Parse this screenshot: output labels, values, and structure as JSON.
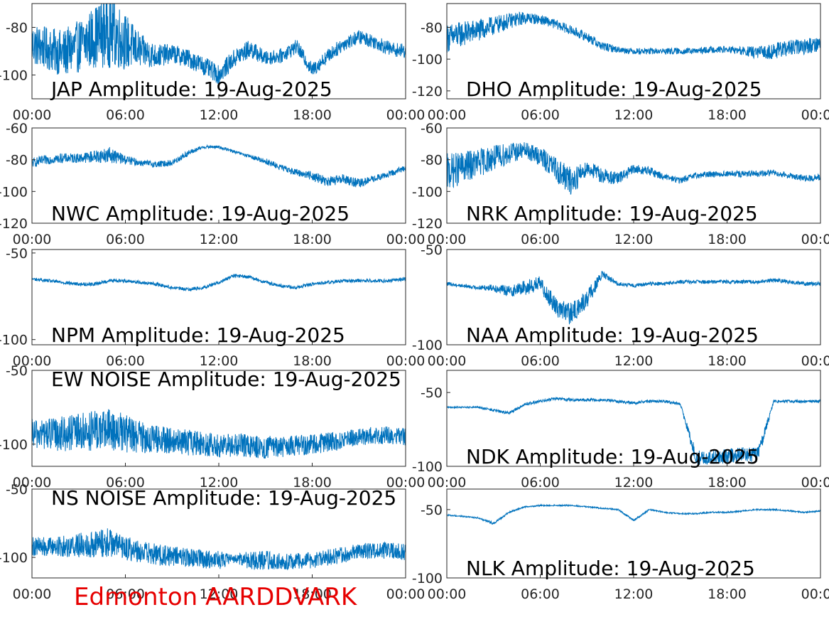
{
  "figure": {
    "footer_label": "Edmonton AARDDVARK",
    "footer_color": "#ff0000",
    "series_color": "#0072bd",
    "x_ticks": [
      "00:00",
      "06:00",
      "12:00",
      "18:00",
      "00:00"
    ],
    "xlim": [
      0,
      24
    ]
  },
  "chart_data": [
    {
      "type": "line",
      "title": "JAP Amplitude: 19-Aug-2025",
      "x_tick_labels": [
        "00:00",
        "06:00",
        "12:00",
        "18:00",
        "00:00"
      ],
      "y_tick_labels": [
        "-80",
        "-100"
      ],
      "yticks": [
        -80,
        -100
      ],
      "ylim": [
        -110,
        -70
      ],
      "xlim": [
        0,
        24
      ],
      "series": [
        {
          "x": [
            0,
            1,
            2,
            3,
            4,
            5,
            6,
            7,
            8,
            9,
            10,
            11,
            12,
            13,
            14,
            15,
            16,
            17,
            18,
            19,
            20,
            21,
            22,
            23,
            24
          ],
          "y": [
            -87,
            -89,
            -91,
            -88,
            -84,
            -81,
            -86,
            -90,
            -92,
            -91,
            -93,
            -96,
            -100,
            -93,
            -89,
            -93,
            -92,
            -88,
            -98,
            -92,
            -87,
            -84,
            -86,
            -89,
            -90
          ],
          "spread": [
            9,
            9,
            10,
            11,
            13,
            16,
            12,
            7,
            5,
            4,
            4,
            4,
            4,
            4,
            4,
            3,
            3,
            3,
            3,
            3,
            3,
            3,
            3,
            3,
            3
          ]
        }
      ]
    },
    {
      "type": "line",
      "title": "DHO Amplitude: 19-Aug-2025",
      "x_tick_labels": [
        "00:00",
        "06:00",
        "12:00",
        "18:00",
        "00:00"
      ],
      "y_tick_labels": [
        "-80",
        "-100",
        "-120"
      ],
      "yticks": [
        -80,
        -100,
        -120
      ],
      "ylim": [
        -125,
        -65
      ],
      "xlim": [
        0,
        24
      ],
      "series": [
        {
          "x": [
            0,
            1,
            2,
            3,
            4,
            5,
            6,
            7,
            8,
            9,
            10,
            11,
            12,
            13,
            14,
            15,
            16,
            17,
            18,
            19,
            20,
            21,
            22,
            23,
            24
          ],
          "y": [
            -87,
            -84,
            -82,
            -79,
            -76,
            -74,
            -75,
            -78,
            -82,
            -86,
            -92,
            -94,
            -95,
            -95,
            -95,
            -95,
            -95,
            -94,
            -94,
            -95,
            -96,
            -95,
            -93,
            -92,
            -90
          ],
          "spread": [
            9,
            8,
            7,
            6,
            5,
            4,
            3,
            3,
            3,
            3,
            3,
            2,
            2,
            2,
            2,
            2,
            2,
            2,
            2,
            3,
            4,
            5,
            5,
            5,
            5
          ]
        }
      ]
    },
    {
      "type": "line",
      "title": "NWC Amplitude: 19-Aug-2025",
      "x_tick_labels": [
        "00:00",
        "06:00",
        "12:00",
        "18:00",
        "00:00"
      ],
      "y_tick_labels": [
        "-60",
        "-80",
        "-100",
        "-120"
      ],
      "yticks": [
        -60,
        -80,
        -100,
        -120
      ],
      "ylim": [
        -120,
        -60
      ],
      "xlim": [
        0,
        24
      ],
      "series": [
        {
          "x": [
            0,
            1,
            2,
            3,
            4,
            5,
            6,
            7,
            8,
            9,
            10,
            11,
            12,
            13,
            14,
            15,
            16,
            17,
            18,
            19,
            20,
            21,
            22,
            23,
            24
          ],
          "y": [
            -82,
            -80,
            -79,
            -79,
            -78,
            -77,
            -80,
            -82,
            -83,
            -82,
            -76,
            -72,
            -72,
            -75,
            -78,
            -81,
            -85,
            -88,
            -90,
            -94,
            -92,
            -95,
            -92,
            -89,
            -85
          ],
          "spread": [
            3,
            3,
            3,
            3,
            4,
            5,
            3,
            2,
            2,
            2,
            2,
            1,
            1,
            1,
            1,
            2,
            2,
            2,
            3,
            3,
            3,
            3,
            2,
            2,
            2
          ]
        }
      ]
    },
    {
      "type": "line",
      "title": "NRK Amplitude: 19-Aug-2025",
      "x_tick_labels": [
        "00:00",
        "06:00",
        "12:00",
        "18:00",
        "00:00"
      ],
      "y_tick_labels": [
        "-60",
        "-80",
        "-100",
        "-120"
      ],
      "yticks": [
        -60,
        -80,
        -100,
        -120
      ],
      "ylim": [
        -120,
        -60
      ],
      "xlim": [
        0,
        24
      ],
      "series": [
        {
          "x": [
            0,
            1,
            2,
            3,
            4,
            5,
            6,
            7,
            8,
            9,
            10,
            11,
            12,
            13,
            14,
            15,
            16,
            17,
            18,
            19,
            20,
            21,
            22,
            23,
            24
          ],
          "y": [
            -88,
            -85,
            -82,
            -79,
            -76,
            -74,
            -78,
            -86,
            -94,
            -85,
            -90,
            -92,
            -86,
            -87,
            -91,
            -93,
            -90,
            -89,
            -89,
            -89,
            -89,
            -88,
            -90,
            -92,
            -91
          ],
          "spread": [
            12,
            10,
            9,
            8,
            7,
            5,
            6,
            8,
            9,
            5,
            5,
            4,
            3,
            3,
            2,
            2,
            2,
            2,
            2,
            2,
            2,
            2,
            2,
            2,
            2
          ]
        }
      ]
    },
    {
      "type": "line",
      "title": "NPM Amplitude: 19-Aug-2025",
      "x_tick_labels": [
        "00:00",
        "06:00",
        "12:00",
        "18:00",
        "00:00"
      ],
      "y_tick_labels": [
        "-50",
        "-100"
      ],
      "yticks": [
        -50,
        -100
      ],
      "ylim": [
        -103,
        -48
      ],
      "xlim": [
        0,
        24
      ],
      "series": [
        {
          "x": [
            0,
            1,
            2,
            3,
            4,
            5,
            6,
            7,
            8,
            9,
            10,
            11,
            12,
            13,
            14,
            15,
            16,
            17,
            18,
            19,
            20,
            21,
            22,
            23,
            24
          ],
          "y": [
            -65,
            -66,
            -67,
            -68,
            -68,
            -66,
            -66,
            -67,
            -68,
            -70,
            -71,
            -70,
            -67,
            -63,
            -64,
            -67,
            -69,
            -70,
            -68,
            -67,
            -66,
            -66,
            -66,
            -66,
            -65
          ],
          "spread": [
            1,
            1,
            1,
            1,
            1,
            1,
            1,
            1,
            1,
            1,
            1,
            1,
            1,
            1,
            1,
            1,
            1,
            1,
            1,
            1,
            1,
            1,
            1,
            1,
            1
          ]
        }
      ]
    },
    {
      "type": "line",
      "title": "NAA Amplitude: 19-Aug-2025",
      "x_tick_labels": [
        "00:00",
        "06:00",
        "12:00",
        "18:00",
        "00:00"
      ],
      "y_tick_labels": [
        "-50",
        "-100"
      ],
      "yticks": [
        -50,
        -100
      ],
      "ylim": [
        -100,
        -50
      ],
      "xlim": [
        0,
        24
      ],
      "series": [
        {
          "x": [
            0,
            1,
            2,
            3,
            4,
            5,
            6,
            7,
            8,
            9,
            10,
            11,
            12,
            13,
            14,
            15,
            16,
            17,
            18,
            19,
            20,
            21,
            22,
            23,
            24
          ],
          "y": [
            -68,
            -69,
            -70,
            -70,
            -72,
            -70,
            -68,
            -80,
            -84,
            -76,
            -63,
            -68,
            -69,
            -68,
            -68,
            -67,
            -67,
            -67,
            -67,
            -67,
            -67,
            -66,
            -67,
            -68,
            -68
          ],
          "spread": [
            1,
            1,
            1,
            2,
            3,
            4,
            4,
            5,
            6,
            5,
            2,
            1,
            1,
            1,
            1,
            1,
            1,
            1,
            1,
            1,
            1,
            1,
            1,
            1,
            1
          ]
        }
      ]
    },
    {
      "type": "line",
      "title": "EW NOISE Amplitude: 19-Aug-2025",
      "x_tick_labels": [
        "00:00",
        "06:00",
        "12:00",
        "18:00",
        "00:00"
      ],
      "y_tick_labels": [
        "-50",
        "-100"
      ],
      "yticks": [
        -50,
        -100
      ],
      "ylim": [
        -115,
        -50
      ],
      "xlim": [
        0,
        24
      ],
      "series": [
        {
          "x": [
            0,
            1,
            2,
            3,
            4,
            5,
            6,
            7,
            8,
            9,
            10,
            11,
            12,
            13,
            14,
            15,
            16,
            17,
            18,
            19,
            20,
            21,
            22,
            23,
            24
          ],
          "y": [
            -93,
            -93,
            -93,
            -92,
            -91,
            -90,
            -93,
            -95,
            -97,
            -98,
            -99,
            -100,
            -101,
            -101,
            -101,
            -102,
            -102,
            -101,
            -100,
            -99,
            -97,
            -95,
            -94,
            -94,
            -95
          ],
          "spread": [
            10,
            11,
            12,
            13,
            14,
            15,
            13,
            11,
            10,
            9,
            9,
            8,
            8,
            8,
            8,
            8,
            7,
            7,
            7,
            7,
            6,
            6,
            6,
            6,
            6
          ]
        }
      ]
    },
    {
      "type": "line",
      "title": "NDK Amplitude: 19-Aug-2025",
      "x_tick_labels": [
        "00:00",
        "06:00",
        "12:00",
        "18:00",
        "00:00"
      ],
      "y_tick_labels": [
        "-50",
        "-100"
      ],
      "yticks": [
        -50,
        -100
      ],
      "ylim": [
        -100,
        -35
      ],
      "xlim": [
        0,
        24
      ],
      "series": [
        {
          "x": [
            0,
            1,
            2,
            3,
            4,
            5,
            6,
            7,
            8,
            9,
            10,
            11,
            12,
            13,
            14,
            15,
            16,
            17,
            18,
            19,
            20,
            21,
            22,
            23,
            24
          ],
          "y": [
            -60,
            -60,
            -60,
            -62,
            -64,
            -58,
            -56,
            -54,
            -55,
            -55,
            -55,
            -56,
            -57,
            -56,
            -56,
            -58,
            -94,
            -94,
            -93,
            -92,
            -92,
            -56,
            -56,
            -56,
            -56
          ],
          "spread": [
            0.5,
            0.5,
            0.5,
            1,
            1,
            1,
            1,
            1,
            1,
            1,
            1,
            1,
            1,
            1,
            1,
            1,
            5,
            5,
            5,
            5,
            5,
            1,
            1,
            1,
            1
          ]
        }
      ]
    },
    {
      "type": "line",
      "title": "NS NOISE Amplitude: 19-Aug-2025",
      "x_tick_labels": [
        "00:00",
        "06:00",
        "12:00",
        "18:00",
        "00:00"
      ],
      "y_tick_labels": [
        "-50",
        "-100"
      ],
      "yticks": [
        -50,
        -100
      ],
      "ylim": [
        -115,
        -50
      ],
      "xlim": [
        0,
        24
      ],
      "series": [
        {
          "x": [
            0,
            1,
            2,
            3,
            4,
            5,
            6,
            7,
            8,
            9,
            10,
            11,
            12,
            13,
            14,
            15,
            16,
            17,
            18,
            19,
            20,
            21,
            22,
            23,
            24
          ],
          "y": [
            -92,
            -92,
            -92,
            -91,
            -90,
            -89,
            -93,
            -96,
            -98,
            -99,
            -100,
            -101,
            -102,
            -101,
            -102,
            -102,
            -103,
            -103,
            -102,
            -100,
            -98,
            -96,
            -95,
            -95,
            -96
          ],
          "spread": [
            7,
            7,
            8,
            9,
            10,
            11,
            9,
            8,
            8,
            7,
            7,
            7,
            7,
            3,
            7,
            7,
            6,
            6,
            6,
            6,
            6,
            6,
            6,
            6,
            6
          ]
        }
      ]
    },
    {
      "type": "line",
      "title": "NLK Amplitude: 19-Aug-2025",
      "x_tick_labels": [
        "00:00",
        "06:00",
        "12:00",
        "18:00",
        "00:00"
      ],
      "y_tick_labels": [
        "-50",
        "-100"
      ],
      "yticks": [
        -50,
        -100
      ],
      "ylim": [
        -100,
        -35
      ],
      "xlim": [
        0,
        24
      ],
      "series": [
        {
          "x": [
            0,
            1,
            2,
            3,
            4,
            5,
            6,
            7,
            8,
            9,
            10,
            11,
            12,
            13,
            14,
            15,
            16,
            17,
            18,
            19,
            20,
            21,
            22,
            23,
            24
          ],
          "y": [
            -54,
            -55,
            -56,
            -60,
            -52,
            -48,
            -47,
            -47,
            -47,
            -48,
            -49,
            -50,
            -58,
            -50,
            -52,
            -53,
            -53,
            -52,
            -52,
            -51,
            -50,
            -50,
            -51,
            -52,
            -51
          ],
          "spread": [
            0.5,
            0.5,
            0.5,
            1,
            0.5,
            0.5,
            0.5,
            0.5,
            0.5,
            0.5,
            0.5,
            0.5,
            1,
            0.5,
            0.5,
            0.5,
            0.5,
            0.5,
            0.5,
            0.5,
            0.5,
            0.5,
            0.5,
            0.5,
            0.5
          ]
        }
      ]
    }
  ]
}
